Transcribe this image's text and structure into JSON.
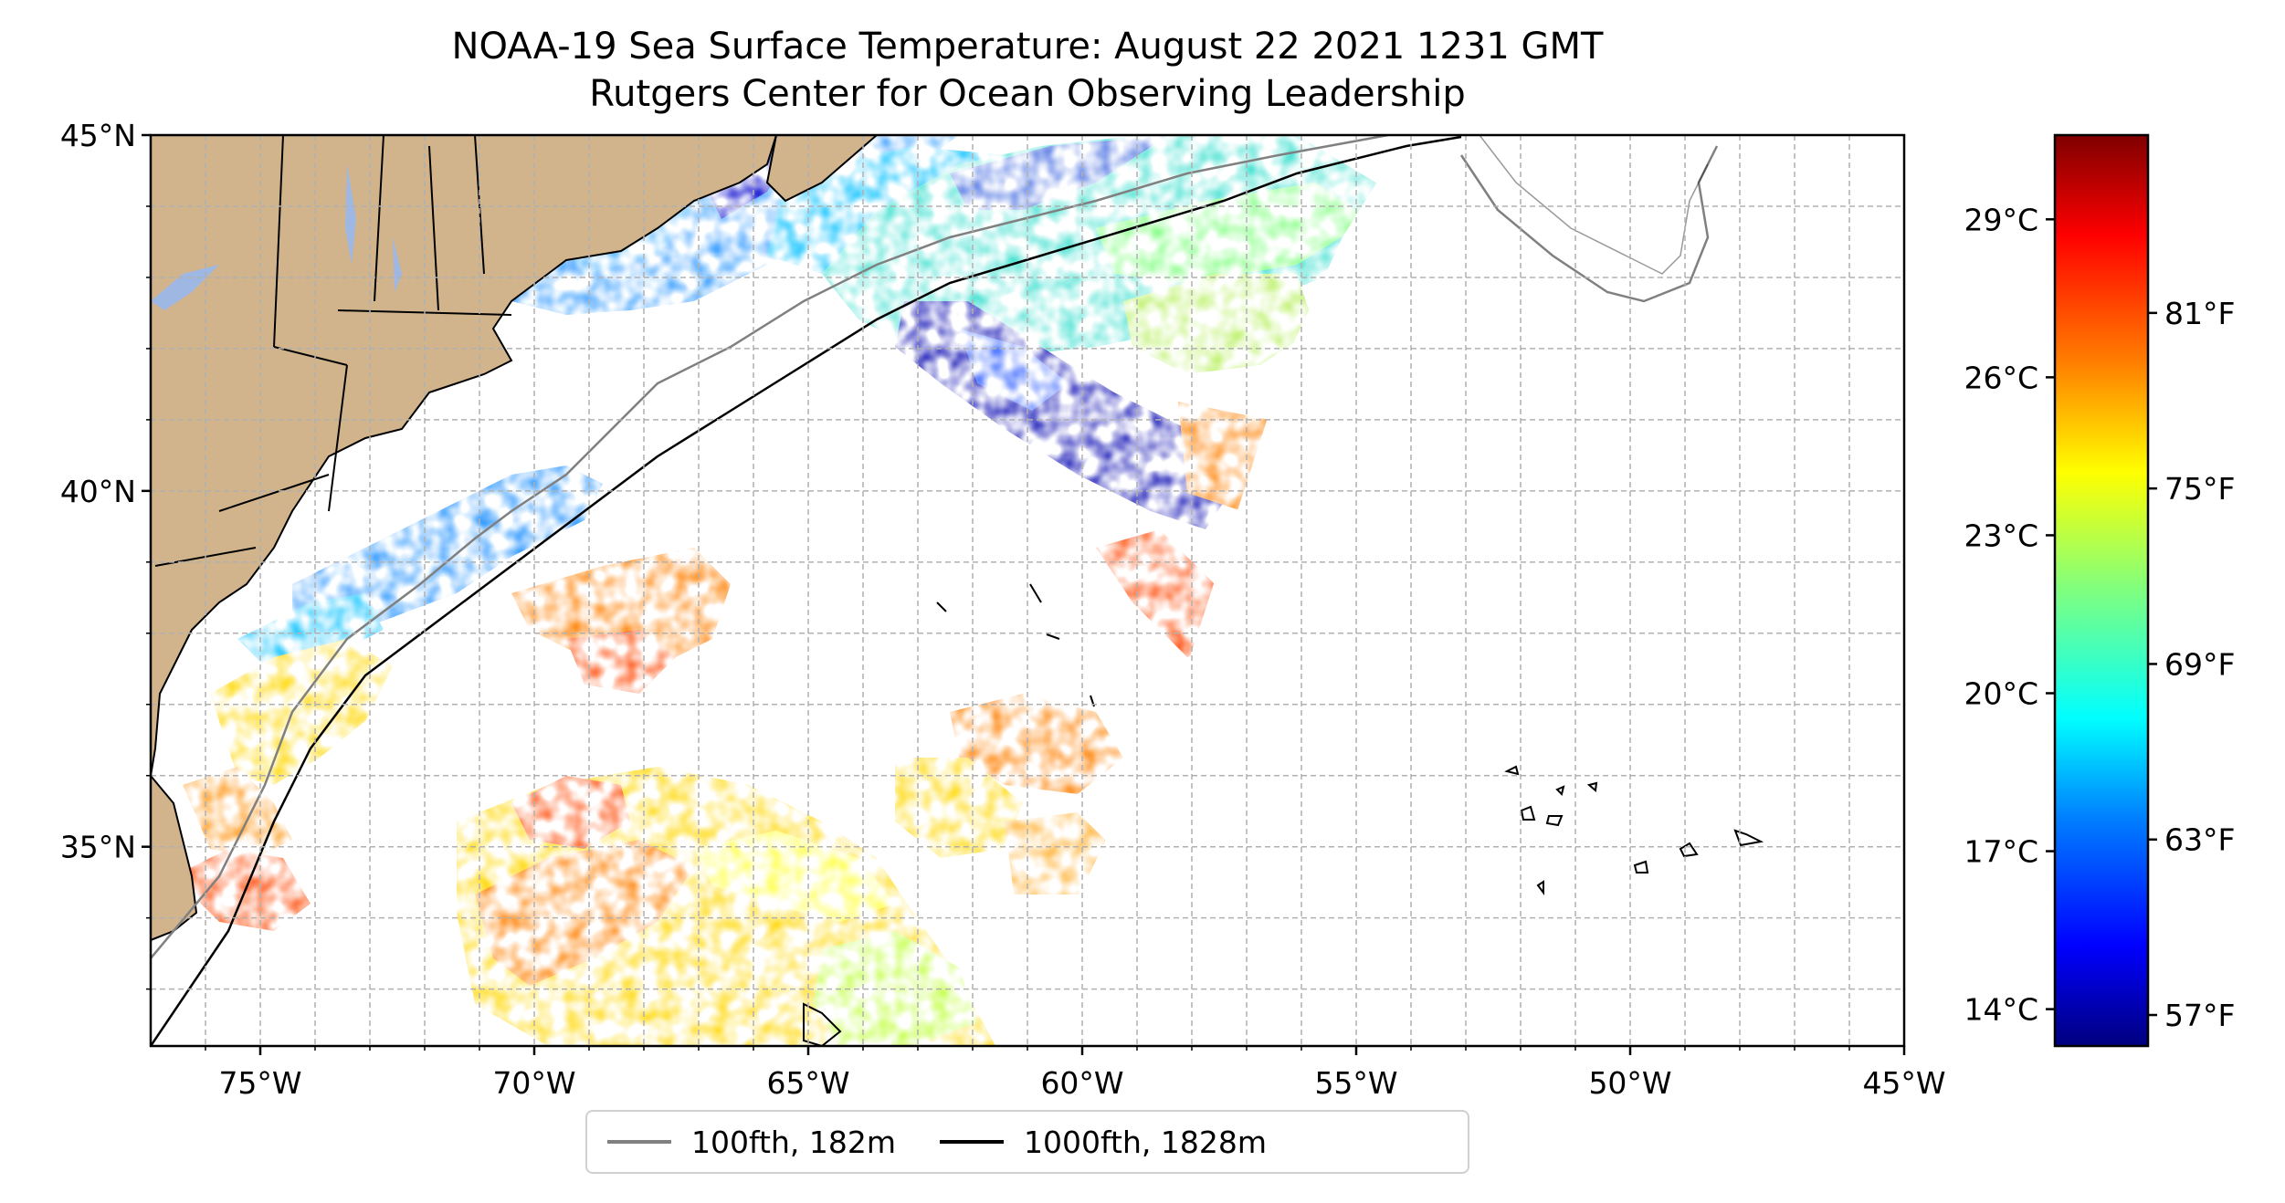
{
  "title": {
    "line1": "NOAA-19 Sea Surface Temperature: August 22 2021 1231 GMT",
    "line2": "Rutgers Center for Ocean Observing Leadership"
  },
  "map": {
    "lon_range": [
      -77,
      -45
    ],
    "lat_range": [
      32.2,
      45
    ],
    "lon_ticks": [
      "75°W",
      "70°W",
      "65°W",
      "60°W",
      "55°W",
      "50°W",
      "45°W"
    ],
    "lat_ticks": [
      "45°N",
      "40°N",
      "35°N"
    ],
    "gridlines": "dashed",
    "land_color": "#d2b48c",
    "lake_color": "#9fb7e3",
    "swath_edge_start": {
      "lon": -55.6,
      "lat": 41.6
    },
    "swath_edge_end": {
      "lon": -61.5,
      "lat": 32.2
    }
  },
  "colorbar": {
    "colormap": "jet",
    "celsius_ticks": [
      "29°C",
      "26°C",
      "23°C",
      "20°C",
      "17°C",
      "14°C"
    ],
    "fahrenheit_ticks": [
      "81°F",
      "75°F",
      "69°F",
      "63°F",
      "57°F"
    ],
    "colors": [
      "#00007f",
      "#0000ff",
      "#007fff",
      "#00ffff",
      "#7fff7f",
      "#ffff00",
      "#ff7f00",
      "#ff0000",
      "#7f0000"
    ]
  },
  "legend": {
    "position": "lower-center",
    "entries": [
      {
        "label": "100fth, 182m",
        "color": "#808080"
      },
      {
        "label": "1000fth, 1828m",
        "color": "#000000"
      }
    ]
  }
}
